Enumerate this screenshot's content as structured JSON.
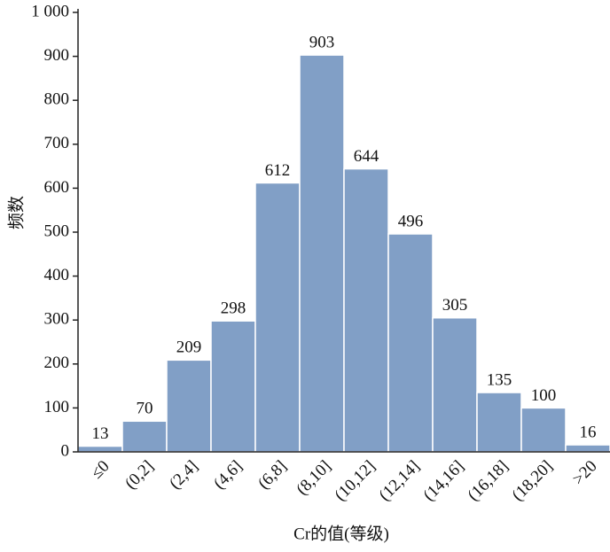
{
  "chart_data": {
    "type": "bar",
    "xlabel": "Cr的值(等级)",
    "ylabel": "频数",
    "categories": [
      "≤0",
      "(0,2]",
      "(2,4]",
      "(4,6]",
      "(6,8]",
      "(8,10]",
      "(10,12]",
      "(12,14]",
      "(14,16]",
      "(16,18]",
      "(18,20]",
      ">20"
    ],
    "values": [
      13,
      70,
      209,
      298,
      612,
      903,
      644,
      496,
      305,
      135,
      100,
      16
    ],
    "color": "#819fc6",
    "ylim": [
      0,
      1000
    ],
    "yticks": [
      0,
      100,
      200,
      300,
      400,
      500,
      600,
      700,
      800,
      900,
      {
        "value": 1000,
        "label": "1 000"
      }
    ],
    "grid": false
  }
}
